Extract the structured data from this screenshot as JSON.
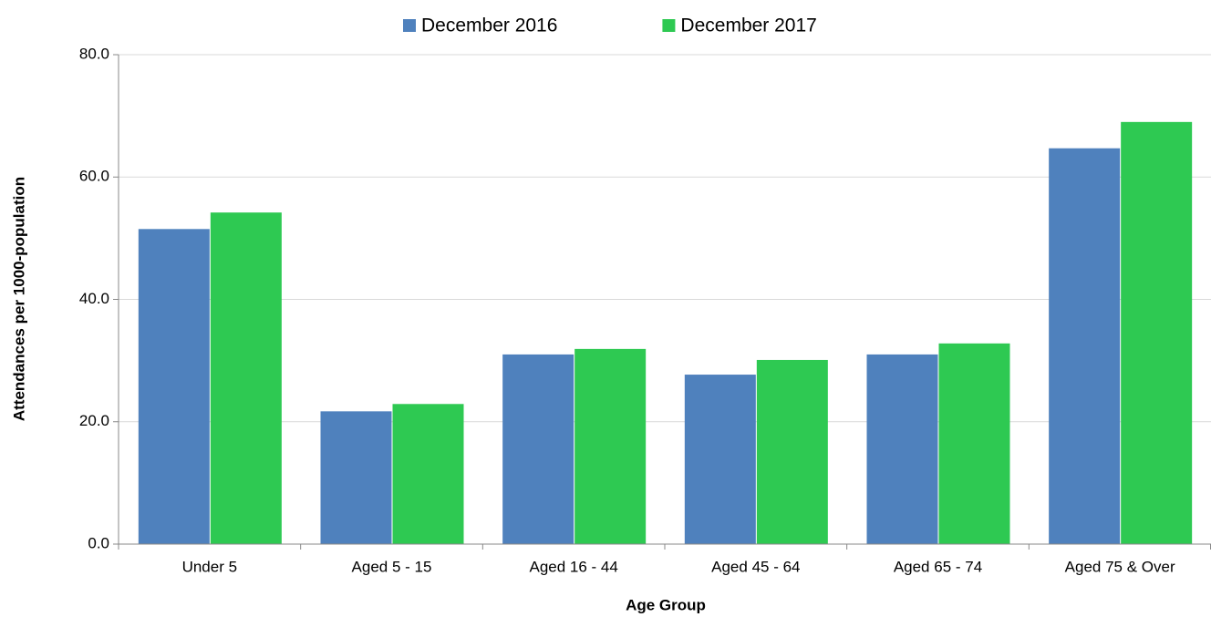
{
  "chart_data": {
    "type": "bar",
    "x_label": "Age Group",
    "y_label": "Attendances per 1000-population",
    "categories": [
      "Under 5",
      "Aged 5 - 15",
      "Aged 16 - 44",
      "Aged 45 - 64",
      "Aged 65 - 74",
      "Aged 75 & Over"
    ],
    "series": [
      {
        "name": "December 2016",
        "color": "#4f81bd",
        "values": [
          51.5,
          21.7,
          31.0,
          27.7,
          31.0,
          64.7
        ]
      },
      {
        "name": "December 2017",
        "color": "#2ec952",
        "values": [
          54.2,
          22.9,
          31.9,
          30.1,
          32.8,
          69.0
        ]
      }
    ],
    "ylim": [
      0,
      80
    ],
    "yticks": [
      {
        "value": 0,
        "label": "0.0"
      },
      {
        "value": 20,
        "label": "20.0"
      },
      {
        "value": 40,
        "label": "40.0"
      },
      {
        "value": 60,
        "label": "60.0"
      },
      {
        "value": 80,
        "label": "80.0"
      }
    ],
    "grid": true,
    "legend": "top"
  }
}
